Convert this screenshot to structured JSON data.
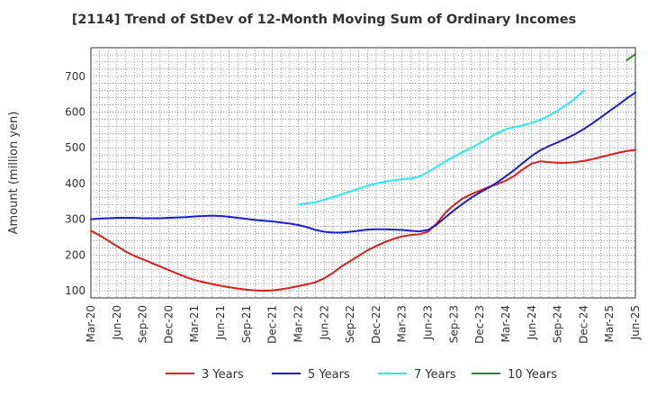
{
  "chart_data": {
    "type": "line",
    "title": "[2114]  Trend of StDev of 12-Month Moving Sum of Ordinary Incomes",
    "xlabel": "",
    "ylabel": "Amount (million yen)",
    "ylim": [
      80,
      780
    ],
    "yticks": [
      100,
      200,
      300,
      400,
      500,
      600,
      700
    ],
    "xticks": [
      "Mar-20",
      "Jun-20",
      "Sep-20",
      "Dec-20",
      "Mar-21",
      "Jun-21",
      "Sep-21",
      "Dec-21",
      "Mar-22",
      "Jun-22",
      "Sep-22",
      "Dec-22",
      "Mar-23",
      "Jun-23",
      "Sep-23",
      "Dec-23",
      "Mar-24",
      "Jun-24",
      "Sep-24",
      "Dec-24",
      "Mar-25",
      "Jun-25"
    ],
    "grid": true,
    "legend_position": "bottom",
    "series": [
      {
        "name": "3 Years",
        "color": "#dd1c1c",
        "start_index": 0,
        "values": [
          268,
          255,
          240,
          225,
          210,
          198,
          188,
          178,
          168,
          158,
          148,
          138,
          130,
          124,
          119,
          114,
          110,
          106,
          103,
          101,
          100,
          101,
          104,
          108,
          113,
          118,
          124,
          135,
          150,
          168,
          183,
          198,
          213,
          225,
          236,
          245,
          252,
          256,
          258,
          265,
          288,
          318,
          340,
          358,
          370,
          380,
          390,
          398,
          408,
          422,
          440,
          456,
          462,
          460,
          458,
          458,
          460,
          463,
          468,
          474,
          480,
          486,
          491,
          494
        ]
      },
      {
        "name": "5 Years",
        "color": "#1c1cd0",
        "start_index": 0,
        "values": [
          300,
          302,
          303,
          304,
          304,
          304,
          303,
          303,
          303,
          304,
          305,
          306,
          308,
          309,
          310,
          309,
          307,
          304,
          301,
          298,
          296,
          294,
          291,
          288,
          284,
          278,
          270,
          265,
          263,
          263,
          265,
          268,
          271,
          272,
          272,
          271,
          270,
          268,
          266,
          270,
          285,
          305,
          325,
          343,
          360,
          375,
          388,
          403,
          420,
          438,
          458,
          477,
          493,
          505,
          515,
          526,
          538,
          552,
          568,
          585,
          603,
          620,
          638,
          655
        ]
      },
      {
        "name": "7 Years",
        "color": "#22eeee",
        "start_index": 24,
        "values": [
          342,
          344,
          348,
          355,
          362,
          370,
          378,
          386,
          394,
          400,
          405,
          409,
          412,
          414,
          420,
          432,
          447,
          462,
          475,
          488,
          500,
          513,
          527,
          541,
          552,
          558,
          563,
          570,
          578,
          590,
          604,
          620,
          637,
          660
        ]
      },
      {
        "name": "10 Years",
        "color": "#2a8a2a",
        "start_index": 62,
        "values": [
          745,
          762
        ]
      }
    ]
  }
}
